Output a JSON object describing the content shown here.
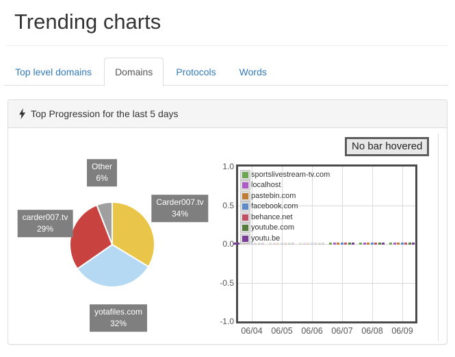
{
  "page": {
    "title": "Trending charts"
  },
  "tabs": [
    {
      "label": "Top level domains",
      "active": false
    },
    {
      "label": "Domains",
      "active": true
    },
    {
      "label": "Protocols",
      "active": false
    },
    {
      "label": "Words",
      "active": false
    }
  ],
  "panel": {
    "heading": "Top Progression for the last 5 days",
    "icon": "flash-icon"
  },
  "hover_status": "No bar hovered",
  "colors": {
    "link_blue": "#337ab7",
    "panel_heading_bg": "#f5f5f5",
    "pie_label_box": "#7f7f7f",
    "chart_border": "#4a4a4a"
  },
  "chart_data": [
    {
      "type": "pie",
      "name": "top-domains-pie",
      "direction": "clockwise",
      "start_angle_deg": 0,
      "slices": [
        {
          "label": "Carder007.tv",
          "percent": 34,
          "color": "#e9c54a"
        },
        {
          "label": "yotafiles.com",
          "percent": 32,
          "color": "#b5d8f3"
        },
        {
          "label": "carder007.tv",
          "percent": 29,
          "color": "#c8423f"
        },
        {
          "label": "Other",
          "percent": 6,
          "color": "#9f9f9f"
        }
      ]
    },
    {
      "type": "bar",
      "name": "daily-progression-bars",
      "categories": [
        "06/04",
        "06/05",
        "06/06",
        "06/07",
        "06/08",
        "06/09"
      ],
      "ylim": [
        -1.0,
        1.0
      ],
      "yticks": [
        "1.0",
        "0.5",
        "0.0",
        "-0.5",
        "-1.0"
      ],
      "grid": true,
      "legend_position": "top-left-inside",
      "faded_categories": [
        "06/04",
        "06/05",
        "06/06"
      ],
      "series": [
        {
          "name": "sportslivestream-tv.com",
          "color": "#6fa653",
          "values": [
            0,
            0,
            0,
            0,
            0,
            0
          ]
        },
        {
          "name": "localhost",
          "color": "#ad5cc5",
          "values": [
            0,
            0,
            0,
            0,
            0,
            0
          ]
        },
        {
          "name": "pastebin.com",
          "color": "#bf7d33",
          "values": [
            0,
            0,
            0,
            0,
            0,
            0
          ]
        },
        {
          "name": "facebook.com",
          "color": "#5e8ac7",
          "values": [
            0,
            0,
            0,
            0,
            0,
            0
          ]
        },
        {
          "name": "behance.net",
          "color": "#c25064",
          "values": [
            0,
            0,
            0,
            0,
            0,
            0
          ]
        },
        {
          "name": "youtube.com",
          "color": "#567d3b",
          "values": [
            0,
            0,
            0,
            0,
            0,
            0
          ]
        },
        {
          "name": "youtu.be",
          "color": "#7b3e97",
          "values": [
            0,
            0,
            0,
            0,
            0,
            0
          ]
        }
      ]
    }
  ]
}
